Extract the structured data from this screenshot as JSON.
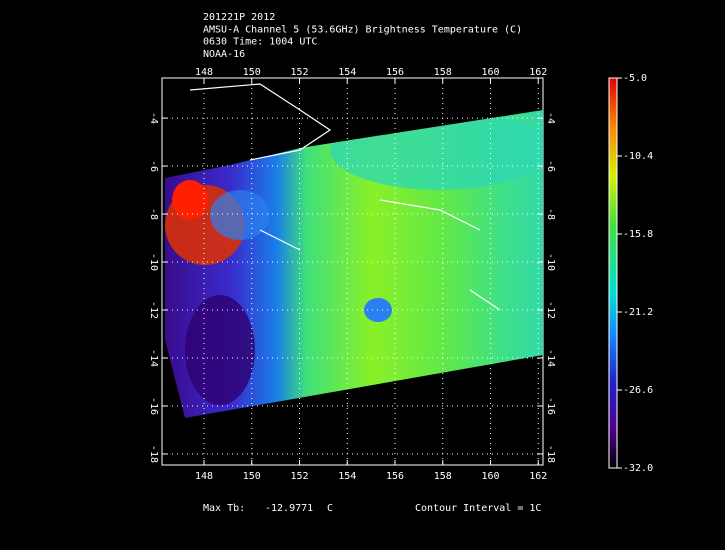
{
  "header": {
    "lines": [
      "201221P 2012",
      "AMSU-A Channel 5 (53.6GHz) Brightness Temperature (C)",
      "0630 Time: 1004 UTC",
      "NOAA-16"
    ]
  },
  "map": {
    "type": "map",
    "xlim": [
      146.24,
      162.2
    ],
    "ylim": [
      -18.46,
      -2.33
    ],
    "xticks": [
      148,
      150,
      152,
      154,
      156,
      158,
      160,
      162
    ],
    "yticks": [
      -4,
      -6,
      -8,
      -10,
      -12,
      -14,
      -16,
      -18
    ],
    "grid": true
  },
  "colorbar": {
    "lim": [
      -32,
      -5
    ],
    "ticks": [
      {
        "value": -5,
        "label": "-5.0"
      },
      -10.4,
      -15.8,
      -21.2,
      -26.6,
      {
        "value": -32,
        "label": "-32.0"
      }
    ]
  },
  "footer": {
    "max_label": "Max Tb:",
    "max_value": -12.9771,
    "unit": "C",
    "contour": "Contour Interval = 1C"
  }
}
